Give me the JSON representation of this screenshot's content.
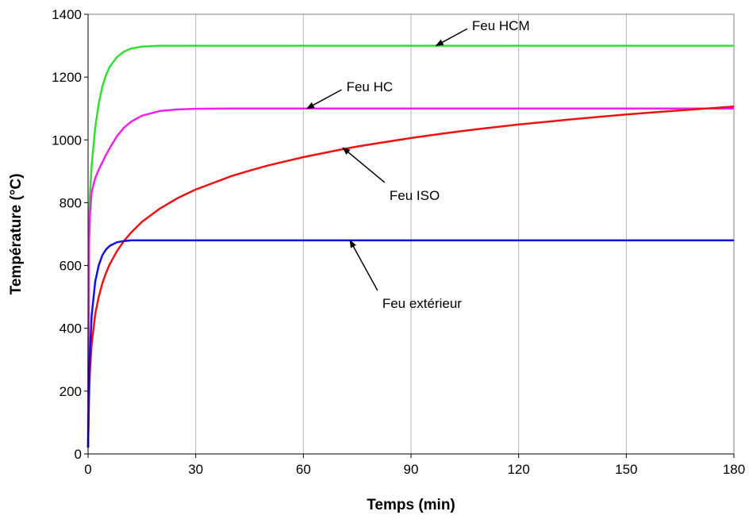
{
  "chart_data": {
    "type": "line",
    "title": "",
    "xlabel": "Temps (min)",
    "ylabel": "Température (°C)",
    "xlim": [
      0,
      180
    ],
    "ylim": [
      0,
      1400
    ],
    "xticks": [
      0,
      30,
      60,
      90,
      120,
      150,
      180
    ],
    "yticks": [
      0,
      200,
      400,
      600,
      800,
      1000,
      1200,
      1400
    ],
    "grid": "vertical",
    "x": [
      0,
      0.25,
      0.5,
      1,
      2,
      3,
      4,
      5,
      6,
      8,
      10,
      12,
      15,
      20,
      25,
      30,
      40,
      45,
      50,
      60,
      70,
      75,
      80,
      90,
      100,
      105,
      110,
      120,
      130,
      135,
      140,
      150,
      160,
      165,
      170,
      180
    ],
    "series": [
      {
        "name": "Feu HCM",
        "color": "#33dd33",
        "values": [
          20,
          716,
          821,
          918,
          1040,
          1117,
          1171,
          1206,
          1232,
          1263,
          1281,
          1291,
          1297,
          1300,
          1300,
          1300,
          1300,
          1300,
          1300,
          1300,
          1300,
          1300,
          1300,
          1300,
          1300,
          1300,
          1300,
          1300,
          1300,
          1300,
          1300,
          1300,
          1300,
          1300,
          1300,
          1300
        ]
      },
      {
        "name": "Feu HC",
        "color": "#ee22ee",
        "values": [
          20,
          650,
          760,
          834,
          878,
          906,
          929,
          952,
          973,
          1011,
          1039,
          1058,
          1077,
          1092,
          1097,
          1099,
          1100,
          1100,
          1100,
          1100,
          1100,
          1100,
          1100,
          1100,
          1100,
          1100,
          1100,
          1100,
          1100,
          1100,
          1100,
          1100,
          1100,
          1100,
          1100,
          1100
        ]
      },
      {
        "name": "Feu ISO",
        "color": "#ee1111",
        "values": [
          20,
          169,
          261,
          349,
          445,
          502,
          544,
          576,
          603,
          645,
          678,
          705,
          739,
          781,
          815,
          842,
          885,
          902,
          918,
          945,
          968,
          979,
          988,
          1006,
          1022,
          1029,
          1036,
          1049,
          1060,
          1066,
          1071,
          1081,
          1090,
          1094,
          1098,
          1106
        ]
      },
      {
        "name": "Feu extérieur",
        "color": "#1111dd",
        "values": [
          20,
          217,
          322,
          440,
          549,
          602,
          633,
          651,
          662,
          674,
          678,
          680,
          680,
          680,
          680,
          680,
          680,
          680,
          680,
          680,
          680,
          680,
          680,
          680,
          680,
          680,
          680,
          680,
          680,
          680,
          680,
          680,
          680,
          680,
          680,
          680
        ]
      }
    ],
    "annotations": [
      {
        "text": "Feu HCM",
        "series": "Feu HCM",
        "target_x": 97,
        "target_y": 1300,
        "label_x": 107,
        "label_y": 1364
      },
      {
        "text": "Feu HC",
        "series": "Feu HC",
        "target_x": 61,
        "target_y": 1100,
        "label_x": 72,
        "label_y": 1170
      },
      {
        "text": "Feu ISO",
        "series": "Feu ISO",
        "target_x": 71,
        "target_y": 975,
        "label_x": 84,
        "label_y": 824
      },
      {
        "text": "Feu extérieur",
        "series": "Feu extérieur",
        "target_x": 73,
        "target_y": 680,
        "label_x": 82,
        "label_y": 480
      }
    ]
  }
}
